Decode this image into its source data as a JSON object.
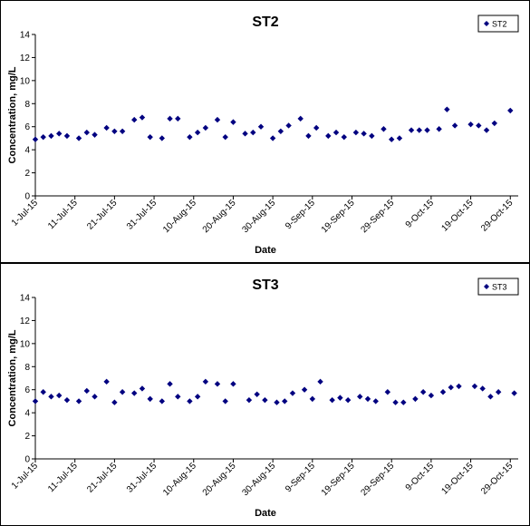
{
  "chart_data": [
    {
      "type": "scatter",
      "title": "ST2",
      "xlabel": "Date",
      "ylabel": "Concentration, mg/L",
      "ylim": [
        0,
        14
      ],
      "yticks": [
        0,
        2,
        4,
        6,
        8,
        10,
        12,
        14
      ],
      "xlim": [
        "2015-07-01",
        "2015-10-31"
      ],
      "xtick_labels": [
        "1-Jul-15",
        "11-Jul-15",
        "21-Jul-15",
        "31-Jul-15",
        "10-Aug-15",
        "20-Aug-15",
        "30-Aug-15",
        "9-Sep-15",
        "19-Sep-15",
        "29-Sep-15",
        "9-Oct-15",
        "19-Oct-15",
        "29-Oct-15"
      ],
      "xtick_dates": [
        "2015-07-01",
        "2015-07-11",
        "2015-07-21",
        "2015-07-31",
        "2015-08-10",
        "2015-08-20",
        "2015-08-30",
        "2015-09-09",
        "2015-09-19",
        "2015-09-29",
        "2015-10-09",
        "2015-10-19",
        "2015-10-29"
      ],
      "grid": false,
      "legend": "top-right",
      "color": "#000080",
      "marker": "diamond",
      "series": [
        {
          "name": "ST2",
          "points": [
            [
              "2015-07-01",
              4.9
            ],
            [
              "2015-07-03",
              5.1
            ],
            [
              "2015-07-05",
              5.2
            ],
            [
              "2015-07-07",
              5.4
            ],
            [
              "2015-07-09",
              5.2
            ],
            [
              "2015-07-12",
              5.0
            ],
            [
              "2015-07-14",
              5.5
            ],
            [
              "2015-07-16",
              5.3
            ],
            [
              "2015-07-19",
              5.9
            ],
            [
              "2015-07-21",
              5.6
            ],
            [
              "2015-07-23",
              5.6
            ],
            [
              "2015-07-26",
              6.6
            ],
            [
              "2015-07-28",
              6.8
            ],
            [
              "2015-07-30",
              5.1
            ],
            [
              "2015-08-02",
              5.0
            ],
            [
              "2015-08-04",
              6.7
            ],
            [
              "2015-08-06",
              6.7
            ],
            [
              "2015-08-09",
              5.1
            ],
            [
              "2015-08-11",
              5.5
            ],
            [
              "2015-08-13",
              5.9
            ],
            [
              "2015-08-16",
              6.6
            ],
            [
              "2015-08-18",
              5.1
            ],
            [
              "2015-08-20",
              6.4
            ],
            [
              "2015-08-23",
              5.4
            ],
            [
              "2015-08-25",
              5.5
            ],
            [
              "2015-08-27",
              6.0
            ],
            [
              "2015-08-30",
              5.0
            ],
            [
              "2015-09-01",
              5.6
            ],
            [
              "2015-09-03",
              6.1
            ],
            [
              "2015-09-06",
              6.7
            ],
            [
              "2015-09-08",
              5.2
            ],
            [
              "2015-09-10",
              5.9
            ],
            [
              "2015-09-13",
              5.2
            ],
            [
              "2015-09-15",
              5.5
            ],
            [
              "2015-09-17",
              5.1
            ],
            [
              "2015-09-20",
              5.5
            ],
            [
              "2015-09-22",
              5.4
            ],
            [
              "2015-09-24",
              5.2
            ],
            [
              "2015-09-27",
              5.8
            ],
            [
              "2015-09-29",
              4.9
            ],
            [
              "2015-10-01",
              5.0
            ],
            [
              "2015-10-04",
              5.7
            ],
            [
              "2015-10-06",
              5.7
            ],
            [
              "2015-10-08",
              5.7
            ],
            [
              "2015-10-11",
              5.8
            ],
            [
              "2015-10-13",
              7.5
            ],
            [
              "2015-10-15",
              6.1
            ],
            [
              "2015-10-19",
              6.2
            ],
            [
              "2015-10-21",
              6.1
            ],
            [
              "2015-10-23",
              5.7
            ],
            [
              "2015-10-25",
              6.3
            ],
            [
              "2015-10-29",
              7.4
            ]
          ]
        }
      ]
    },
    {
      "type": "scatter",
      "title": "ST3",
      "xlabel": "Date",
      "ylabel": "Concentration, mg/L",
      "ylim": [
        0,
        14
      ],
      "yticks": [
        0,
        2,
        4,
        6,
        8,
        10,
        12,
        14
      ],
      "xlim": [
        "2015-07-01",
        "2015-10-31"
      ],
      "xtick_labels": [
        "1-Jul-15",
        "11-Jul-15",
        "21-Jul-15",
        "31-Jul-15",
        "10-Aug-15",
        "20-Aug-15",
        "30-Aug-15",
        "9-Sep-15",
        "19-Sep-15",
        "29-Sep-15",
        "9-Oct-15",
        "19-Oct-15",
        "29-Oct-15"
      ],
      "xtick_dates": [
        "2015-07-01",
        "2015-07-11",
        "2015-07-21",
        "2015-07-31",
        "2015-08-10",
        "2015-08-20",
        "2015-08-30",
        "2015-09-09",
        "2015-09-19",
        "2015-09-29",
        "2015-10-09",
        "2015-10-19",
        "2015-10-29"
      ],
      "grid": false,
      "legend": "top-right",
      "color": "#000080",
      "marker": "diamond",
      "series": [
        {
          "name": "ST3",
          "points": [
            [
              "2015-07-01",
              5.0
            ],
            [
              "2015-07-03",
              5.8
            ],
            [
              "2015-07-05",
              5.4
            ],
            [
              "2015-07-07",
              5.5
            ],
            [
              "2015-07-09",
              5.1
            ],
            [
              "2015-07-12",
              5.0
            ],
            [
              "2015-07-14",
              5.9
            ],
            [
              "2015-07-16",
              5.4
            ],
            [
              "2015-07-19",
              6.7
            ],
            [
              "2015-07-21",
              4.9
            ],
            [
              "2015-07-23",
              5.8
            ],
            [
              "2015-07-26",
              5.7
            ],
            [
              "2015-07-28",
              6.1
            ],
            [
              "2015-07-30",
              5.2
            ],
            [
              "2015-08-02",
              5.0
            ],
            [
              "2015-08-04",
              6.5
            ],
            [
              "2015-08-06",
              5.4
            ],
            [
              "2015-08-09",
              5.0
            ],
            [
              "2015-08-11",
              5.4
            ],
            [
              "2015-08-13",
              6.7
            ],
            [
              "2015-08-16",
              6.5
            ],
            [
              "2015-08-18",
              5.0
            ],
            [
              "2015-08-20",
              6.5
            ],
            [
              "2015-08-24",
              5.1
            ],
            [
              "2015-08-26",
              5.6
            ],
            [
              "2015-08-28",
              5.1
            ],
            [
              "2015-08-31",
              4.9
            ],
            [
              "2015-09-02",
              5.0
            ],
            [
              "2015-09-04",
              5.7
            ],
            [
              "2015-09-07",
              6.0
            ],
            [
              "2015-09-09",
              5.2
            ],
            [
              "2015-09-11",
              6.7
            ],
            [
              "2015-09-14",
              5.1
            ],
            [
              "2015-09-16",
              5.3
            ],
            [
              "2015-09-18",
              5.1
            ],
            [
              "2015-09-21",
              5.4
            ],
            [
              "2015-09-23",
              5.2
            ],
            [
              "2015-09-25",
              5.0
            ],
            [
              "2015-09-28",
              5.8
            ],
            [
              "2015-09-30",
              4.9
            ],
            [
              "2015-10-02",
              4.9
            ],
            [
              "2015-10-05",
              5.2
            ],
            [
              "2015-10-07",
              5.8
            ],
            [
              "2015-10-09",
              5.5
            ],
            [
              "2015-10-12",
              5.8
            ],
            [
              "2015-10-14",
              6.2
            ],
            [
              "2015-10-16",
              6.3
            ],
            [
              "2015-10-20",
              6.3
            ],
            [
              "2015-10-22",
              6.1
            ],
            [
              "2015-10-24",
              5.4
            ],
            [
              "2015-10-26",
              5.8
            ],
            [
              "2015-10-30",
              5.7
            ]
          ]
        }
      ]
    }
  ]
}
